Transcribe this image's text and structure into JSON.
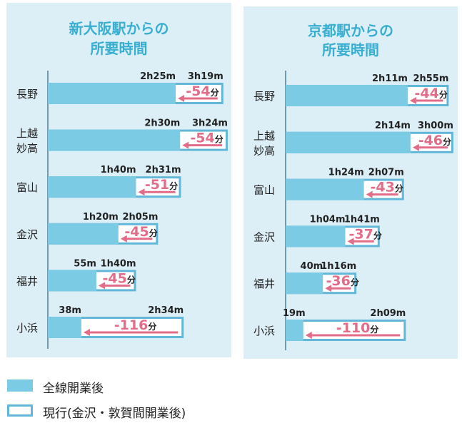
{
  "colors": {
    "new_line": "#7ccbe5",
    "current_border": "#62b7d8",
    "diff_text": "#e36d89",
    "title": "#38aed1",
    "panel_bg": "#dceff6"
  },
  "legend": {
    "new_line_label": "全線開業後",
    "current_label": "現行(金沢・敦賀間開業後)"
  },
  "chart_data": [
    {
      "type": "bar",
      "title": "新大阪駅からの所要時間",
      "title_lines": [
        "新大阪駅からの",
        "所要時間"
      ],
      "categories": [
        "長野",
        "上越妙高",
        "富山",
        "金沢",
        "福井",
        "小浜"
      ],
      "category_lines": [
        [
          "長野"
        ],
        [
          "上越",
          "妙高"
        ],
        [
          "富山"
        ],
        [
          "金沢"
        ],
        [
          "福井"
        ],
        [
          "小浜"
        ]
      ],
      "series": [
        {
          "name": "全線開業後",
          "values": [
            145,
            150,
            100,
            80,
            55,
            38
          ],
          "labels": [
            "2h25m",
            "2h30m",
            "1h40m",
            "1h20m",
            "55m",
            "38m"
          ]
        },
        {
          "name": "現行(金沢・敦賀間開業後)",
          "values": [
            199,
            204,
            151,
            125,
            100,
            154
          ],
          "labels": [
            "3h19m",
            "3h24m",
            "2h31m",
            "2h05m",
            "1h40m",
            "2h34m"
          ]
        }
      ],
      "differences": [
        "-54",
        "-54",
        "-51",
        "-45",
        "-45",
        "-116"
      ],
      "diff_unit": "分"
    },
    {
      "type": "bar",
      "title": "京都駅からの所要時間",
      "title_lines": [
        "京都駅からの",
        "所要時間"
      ],
      "categories": [
        "長野",
        "上越妙高",
        "富山",
        "金沢",
        "福井",
        "小浜"
      ],
      "category_lines": [
        [
          "長野"
        ],
        [
          "上越",
          "妙高"
        ],
        [
          "富山"
        ],
        [
          "金沢"
        ],
        [
          "福井"
        ],
        [
          "小浜"
        ]
      ],
      "series": [
        {
          "name": "全線開業後",
          "values": [
            131,
            134,
            84,
            64,
            40,
            19
          ],
          "labels": [
            "2h11m",
            "2h14m",
            "1h24m",
            "1h04m",
            "40m",
            "19m"
          ]
        },
        {
          "name": "現行(金沢・敦賀間開業後)",
          "values": [
            175,
            180,
            127,
            101,
            76,
            129
          ],
          "labels": [
            "2h55m",
            "3h00m",
            "2h07m",
            "1h41m",
            "1h16m",
            "2h09m"
          ]
        }
      ],
      "differences": [
        "-44",
        "-46",
        "-43",
        "-37",
        "-36",
        "-110"
      ],
      "diff_unit": "分"
    }
  ]
}
